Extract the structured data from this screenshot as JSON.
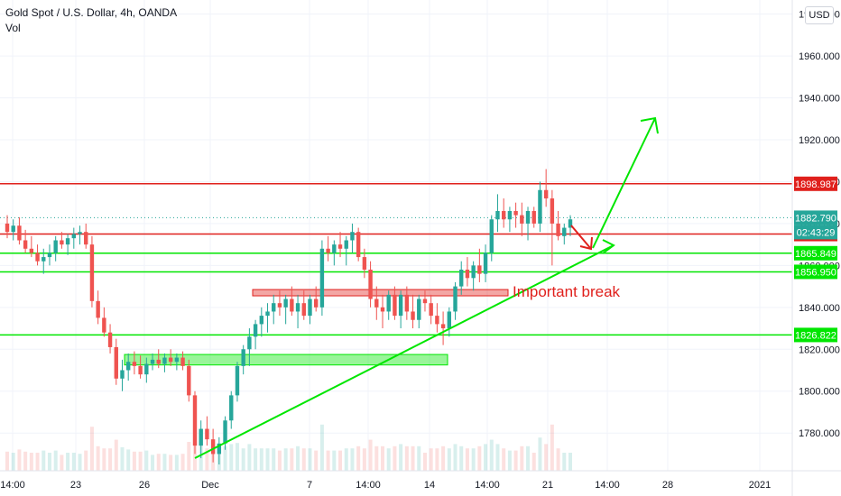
{
  "legend": {
    "title": "Gold Spot / U.S. Dollar, 4h, OANDA",
    "volume_label": "Vol"
  },
  "currency_button": "USD",
  "annotation": "Important break",
  "colors": {
    "up": "#26a69a",
    "down": "#ef5350",
    "resistance": "#e0201c",
    "support": "#00e600",
    "grid": "#f0f3fa",
    "current_price_badge": "#26a69a",
    "countdown_badge": "#26a69a"
  },
  "chart_data": {
    "type": "candlestick",
    "title": "Gold Spot / U.S. Dollar, 4h, OANDA",
    "y_axis": {
      "ylim": [
        1762,
        1985
      ],
      "ticks": [
        1780,
        1800,
        1820,
        1840,
        1860,
        1880,
        1900,
        1920,
        1940,
        1960,
        1980
      ],
      "tick_labels": [
        "1780.000",
        "1800.000",
        "1820.000",
        "1840.000",
        "1860.000",
        "1880.000",
        "1900.000",
        "1920.000",
        "1940.000",
        "1960.000",
        "1980.000"
      ]
    },
    "x_axis": {
      "tick_labels": [
        "14:00",
        "23",
        "26",
        "Dec",
        "7",
        "14:00",
        "14",
        "14:00",
        "21",
        "14:00",
        "28",
        "2021"
      ]
    },
    "grid": true,
    "horizontal_levels": [
      {
        "price": 1898.987,
        "label": "1898.987",
        "color": "#e0201c"
      },
      {
        "price": 1874.991,
        "label": "1874.991",
        "color": "#e0201c"
      },
      {
        "price": 1865.849,
        "label": "1865.849",
        "color": "#00e600"
      },
      {
        "price": 1856.95,
        "label": "1856.950",
        "color": "#00e600"
      },
      {
        "price": 1826.822,
        "label": "1826.822",
        "color": "#00e600"
      }
    ],
    "current_price": {
      "price": 1882.79,
      "label": "1882.790",
      "countdown": "02:43:29"
    },
    "zones": [
      {
        "from": 1845.5,
        "to": 1848.5,
        "color": "#e0201c"
      },
      {
        "from": 1812.5,
        "to": 1817.5,
        "color": "#00e600"
      }
    ],
    "candles": [
      [
        1880,
        1884,
        1873,
        1876
      ],
      [
        1876,
        1882,
        1872,
        1879
      ],
      [
        1879,
        1883,
        1870,
        1872
      ],
      [
        1872,
        1877,
        1866,
        1868
      ],
      [
        1868,
        1874,
        1864,
        1866
      ],
      [
        1866,
        1870,
        1860,
        1862
      ],
      [
        1862,
        1868,
        1856,
        1864
      ],
      [
        1864,
        1870,
        1860,
        1866
      ],
      [
        1866,
        1874,
        1862,
        1872
      ],
      [
        1872,
        1876,
        1868,
        1870
      ],
      [
        1870,
        1875,
        1865,
        1873
      ],
      [
        1873,
        1878,
        1868,
        1875
      ],
      [
        1875,
        1879,
        1870,
        1876
      ],
      [
        1876,
        1880,
        1868,
        1870
      ],
      [
        1870,
        1874,
        1840,
        1843
      ],
      [
        1843,
        1848,
        1832,
        1835
      ],
      [
        1835,
        1840,
        1826,
        1828
      ],
      [
        1828,
        1832,
        1818,
        1821
      ],
      [
        1821,
        1825,
        1803,
        1806
      ],
      [
        1806,
        1815,
        1800,
        1810
      ],
      [
        1810,
        1818,
        1805,
        1814
      ],
      [
        1814,
        1819,
        1808,
        1812
      ],
      [
        1812,
        1817,
        1806,
        1808
      ],
      [
        1808,
        1816,
        1804,
        1813
      ],
      [
        1813,
        1818,
        1810,
        1815
      ],
      [
        1815,
        1820,
        1811,
        1813
      ],
      [
        1813,
        1818,
        1809,
        1816
      ],
      [
        1816,
        1820,
        1812,
        1814
      ],
      [
        1814,
        1818,
        1810,
        1816
      ],
      [
        1816,
        1819,
        1810,
        1812
      ],
      [
        1812,
        1815,
        1795,
        1798
      ],
      [
        1798,
        1800,
        1770,
        1774
      ],
      [
        1774,
        1786,
        1768,
        1782
      ],
      [
        1782,
        1788,
        1774,
        1777
      ],
      [
        1777,
        1782,
        1766,
        1770
      ],
      [
        1770,
        1778,
        1765,
        1775
      ],
      [
        1775,
        1788,
        1772,
        1786
      ],
      [
        1786,
        1800,
        1782,
        1798
      ],
      [
        1798,
        1814,
        1795,
        1812
      ],
      [
        1812,
        1822,
        1808,
        1820
      ],
      [
        1820,
        1830,
        1812,
        1826
      ],
      [
        1826,
        1834,
        1820,
        1832
      ],
      [
        1832,
        1840,
        1826,
        1836
      ],
      [
        1836,
        1842,
        1828,
        1838
      ],
      [
        1838,
        1846,
        1832,
        1842
      ],
      [
        1842,
        1848,
        1836,
        1840
      ],
      [
        1840,
        1846,
        1832,
        1844
      ],
      [
        1844,
        1850,
        1836,
        1838
      ],
      [
        1838,
        1846,
        1830,
        1842
      ],
      [
        1842,
        1848,
        1834,
        1836
      ],
      [
        1836,
        1846,
        1832,
        1844
      ],
      [
        1844,
        1850,
        1838,
        1840
      ],
      [
        1840,
        1872,
        1836,
        1868
      ],
      [
        1868,
        1874,
        1862,
        1866
      ],
      [
        1866,
        1872,
        1860,
        1870
      ],
      [
        1870,
        1876,
        1864,
        1868
      ],
      [
        1868,
        1874,
        1860,
        1872
      ],
      [
        1872,
        1880,
        1866,
        1876
      ],
      [
        1876,
        1878,
        1862,
        1864
      ],
      [
        1864,
        1868,
        1854,
        1858
      ],
      [
        1858,
        1862,
        1840,
        1844
      ],
      [
        1844,
        1850,
        1834,
        1840
      ],
      [
        1840,
        1846,
        1830,
        1838
      ],
      [
        1838,
        1848,
        1834,
        1846
      ],
      [
        1846,
        1850,
        1834,
        1836
      ],
      [
        1836,
        1848,
        1830,
        1846
      ],
      [
        1846,
        1850,
        1834,
        1838
      ],
      [
        1838,
        1846,
        1830,
        1834
      ],
      [
        1834,
        1846,
        1830,
        1844
      ],
      [
        1844,
        1848,
        1838,
        1842
      ],
      [
        1842,
        1846,
        1832,
        1836
      ],
      [
        1836,
        1842,
        1828,
        1832
      ],
      [
        1832,
        1838,
        1822,
        1830
      ],
      [
        1830,
        1840,
        1826,
        1838
      ],
      [
        1838,
        1852,
        1834,
        1850
      ],
      [
        1850,
        1862,
        1846,
        1858
      ],
      [
        1858,
        1864,
        1850,
        1854
      ],
      [
        1854,
        1862,
        1848,
        1860
      ],
      [
        1860,
        1868,
        1852,
        1856
      ],
      [
        1856,
        1870,
        1852,
        1866
      ],
      [
        1866,
        1884,
        1862,
        1882
      ],
      [
        1882,
        1894,
        1876,
        1886
      ],
      [
        1886,
        1892,
        1878,
        1882
      ],
      [
        1882,
        1888,
        1876,
        1886
      ],
      [
        1886,
        1890,
        1878,
        1884
      ],
      [
        1884,
        1890,
        1874,
        1880
      ],
      [
        1880,
        1888,
        1872,
        1886
      ],
      [
        1886,
        1888,
        1878,
        1880
      ],
      [
        1880,
        1900,
        1876,
        1896
      ],
      [
        1896,
        1906,
        1888,
        1892
      ],
      [
        1892,
        1896,
        1860,
        1880
      ],
      [
        1880,
        1886,
        1872,
        1874
      ],
      [
        1874,
        1880,
        1870,
        1878
      ],
      [
        1878,
        1884,
        1874,
        1882
      ]
    ]
  }
}
